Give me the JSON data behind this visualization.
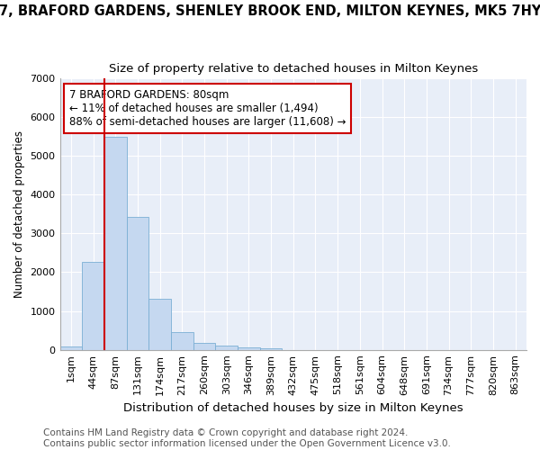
{
  "title": "7, BRAFORD GARDENS, SHENLEY BROOK END, MILTON KEYNES, MK5 7HY",
  "subtitle": "Size of property relative to detached houses in Milton Keynes",
  "xlabel": "Distribution of detached houses by size in Milton Keynes",
  "ylabel": "Number of detached properties",
  "bar_color": "#c5d8f0",
  "bar_edge_color": "#7aafd4",
  "fig_background_color": "#ffffff",
  "ax_background_color": "#e8eef8",
  "grid_color": "#ffffff",
  "categories": [
    "1sqm",
    "44sqm",
    "87sqm",
    "131sqm",
    "174sqm",
    "217sqm",
    "260sqm",
    "303sqm",
    "346sqm",
    "389sqm",
    "432sqm",
    "475sqm",
    "518sqm",
    "561sqm",
    "604sqm",
    "648sqm",
    "691sqm",
    "734sqm",
    "777sqm",
    "820sqm",
    "863sqm"
  ],
  "values": [
    80,
    2270,
    5480,
    3430,
    1310,
    460,
    170,
    100,
    65,
    45,
    0,
    0,
    0,
    0,
    0,
    0,
    0,
    0,
    0,
    0,
    0
  ],
  "ylim": [
    0,
    7000
  ],
  "yticks": [
    0,
    1000,
    2000,
    3000,
    4000,
    5000,
    6000,
    7000
  ],
  "line_x_index": 2,
  "annotation_text": "7 BRAFORD GARDENS: 80sqm\n← 11% of detached houses are smaller (1,494)\n88% of semi-detached houses are larger (11,608) →",
  "annotation_box_color": "#ffffff",
  "annotation_box_edge_color": "#cc0000",
  "line_color": "#cc0000",
  "footer_text": "Contains HM Land Registry data © Crown copyright and database right 2024.\nContains public sector information licensed under the Open Government Licence v3.0.",
  "title_fontsize": 10.5,
  "subtitle_fontsize": 9.5,
  "xlabel_fontsize": 9.5,
  "ylabel_fontsize": 8.5,
  "tick_fontsize": 8,
  "annotation_fontsize": 8.5,
  "footer_fontsize": 7.5
}
